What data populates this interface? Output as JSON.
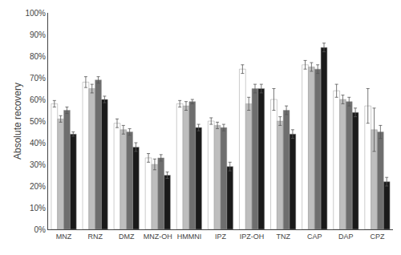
{
  "chart_data": {
    "type": "bar",
    "ylabel": "Absolute recovery",
    "categories": [
      "MNZ",
      "RNZ",
      "DMZ",
      "MNZ-OH",
      "HMMNI",
      "IPZ",
      "IPZ-OH",
      "TNZ",
      "CAP",
      "DAP",
      "CPZ"
    ],
    "series": [
      {
        "color": "#FFFFFF",
        "values": [
          58,
          68,
          49,
          33,
          58,
          50,
          74,
          60,
          76,
          64,
          57
        ],
        "errors": [
          1.5,
          2.5,
          2.0,
          2.0,
          1.5,
          1.5,
          2.0,
          5.0,
          2.0,
          3.0,
          8.0
        ]
      },
      {
        "color": "#BEBEBE",
        "values": [
          51,
          65,
          46,
          30,
          57,
          48,
          58,
          50,
          75,
          60,
          46
        ],
        "errors": [
          1.5,
          2.0,
          2.0,
          2.5,
          2.0,
          1.5,
          3.0,
          2.0,
          2.0,
          2.0,
          10.0
        ]
      },
      {
        "color": "#6E6E6E",
        "values": [
          55,
          69,
          45,
          33,
          59,
          47,
          65,
          55,
          74,
          59,
          45
        ],
        "errors": [
          1.5,
          1.5,
          1.5,
          1.5,
          1.0,
          1.5,
          2.0,
          2.0,
          2.0,
          2.0,
          3.0
        ]
      },
      {
        "color": "#1A1A1A",
        "values": [
          44,
          60,
          38,
          25,
          47,
          29,
          65,
          44,
          84,
          54,
          22
        ],
        "errors": [
          1.0,
          1.5,
          2.0,
          1.5,
          1.5,
          2.0,
          2.0,
          2.0,
          2.0,
          2.0,
          2.0
        ]
      }
    ],
    "ylim": [
      0,
      100
    ],
    "yticks": [
      {
        "value": 0,
        "label": "0%"
      },
      {
        "value": 10,
        "label": "10%"
      },
      {
        "value": 20,
        "label": "20%"
      },
      {
        "value": 30,
        "label": "30%"
      },
      {
        "value": 40,
        "label": "40%"
      },
      {
        "value": 50,
        "label": "50%"
      },
      {
        "value": 60,
        "label": "60%"
      },
      {
        "value": 70,
        "label": "70%"
      },
      {
        "value": 80,
        "label": "80%"
      },
      {
        "value": 90,
        "label": "90%"
      },
      {
        "value": 100,
        "label": "100%"
      }
    ],
    "grid": false
  }
}
